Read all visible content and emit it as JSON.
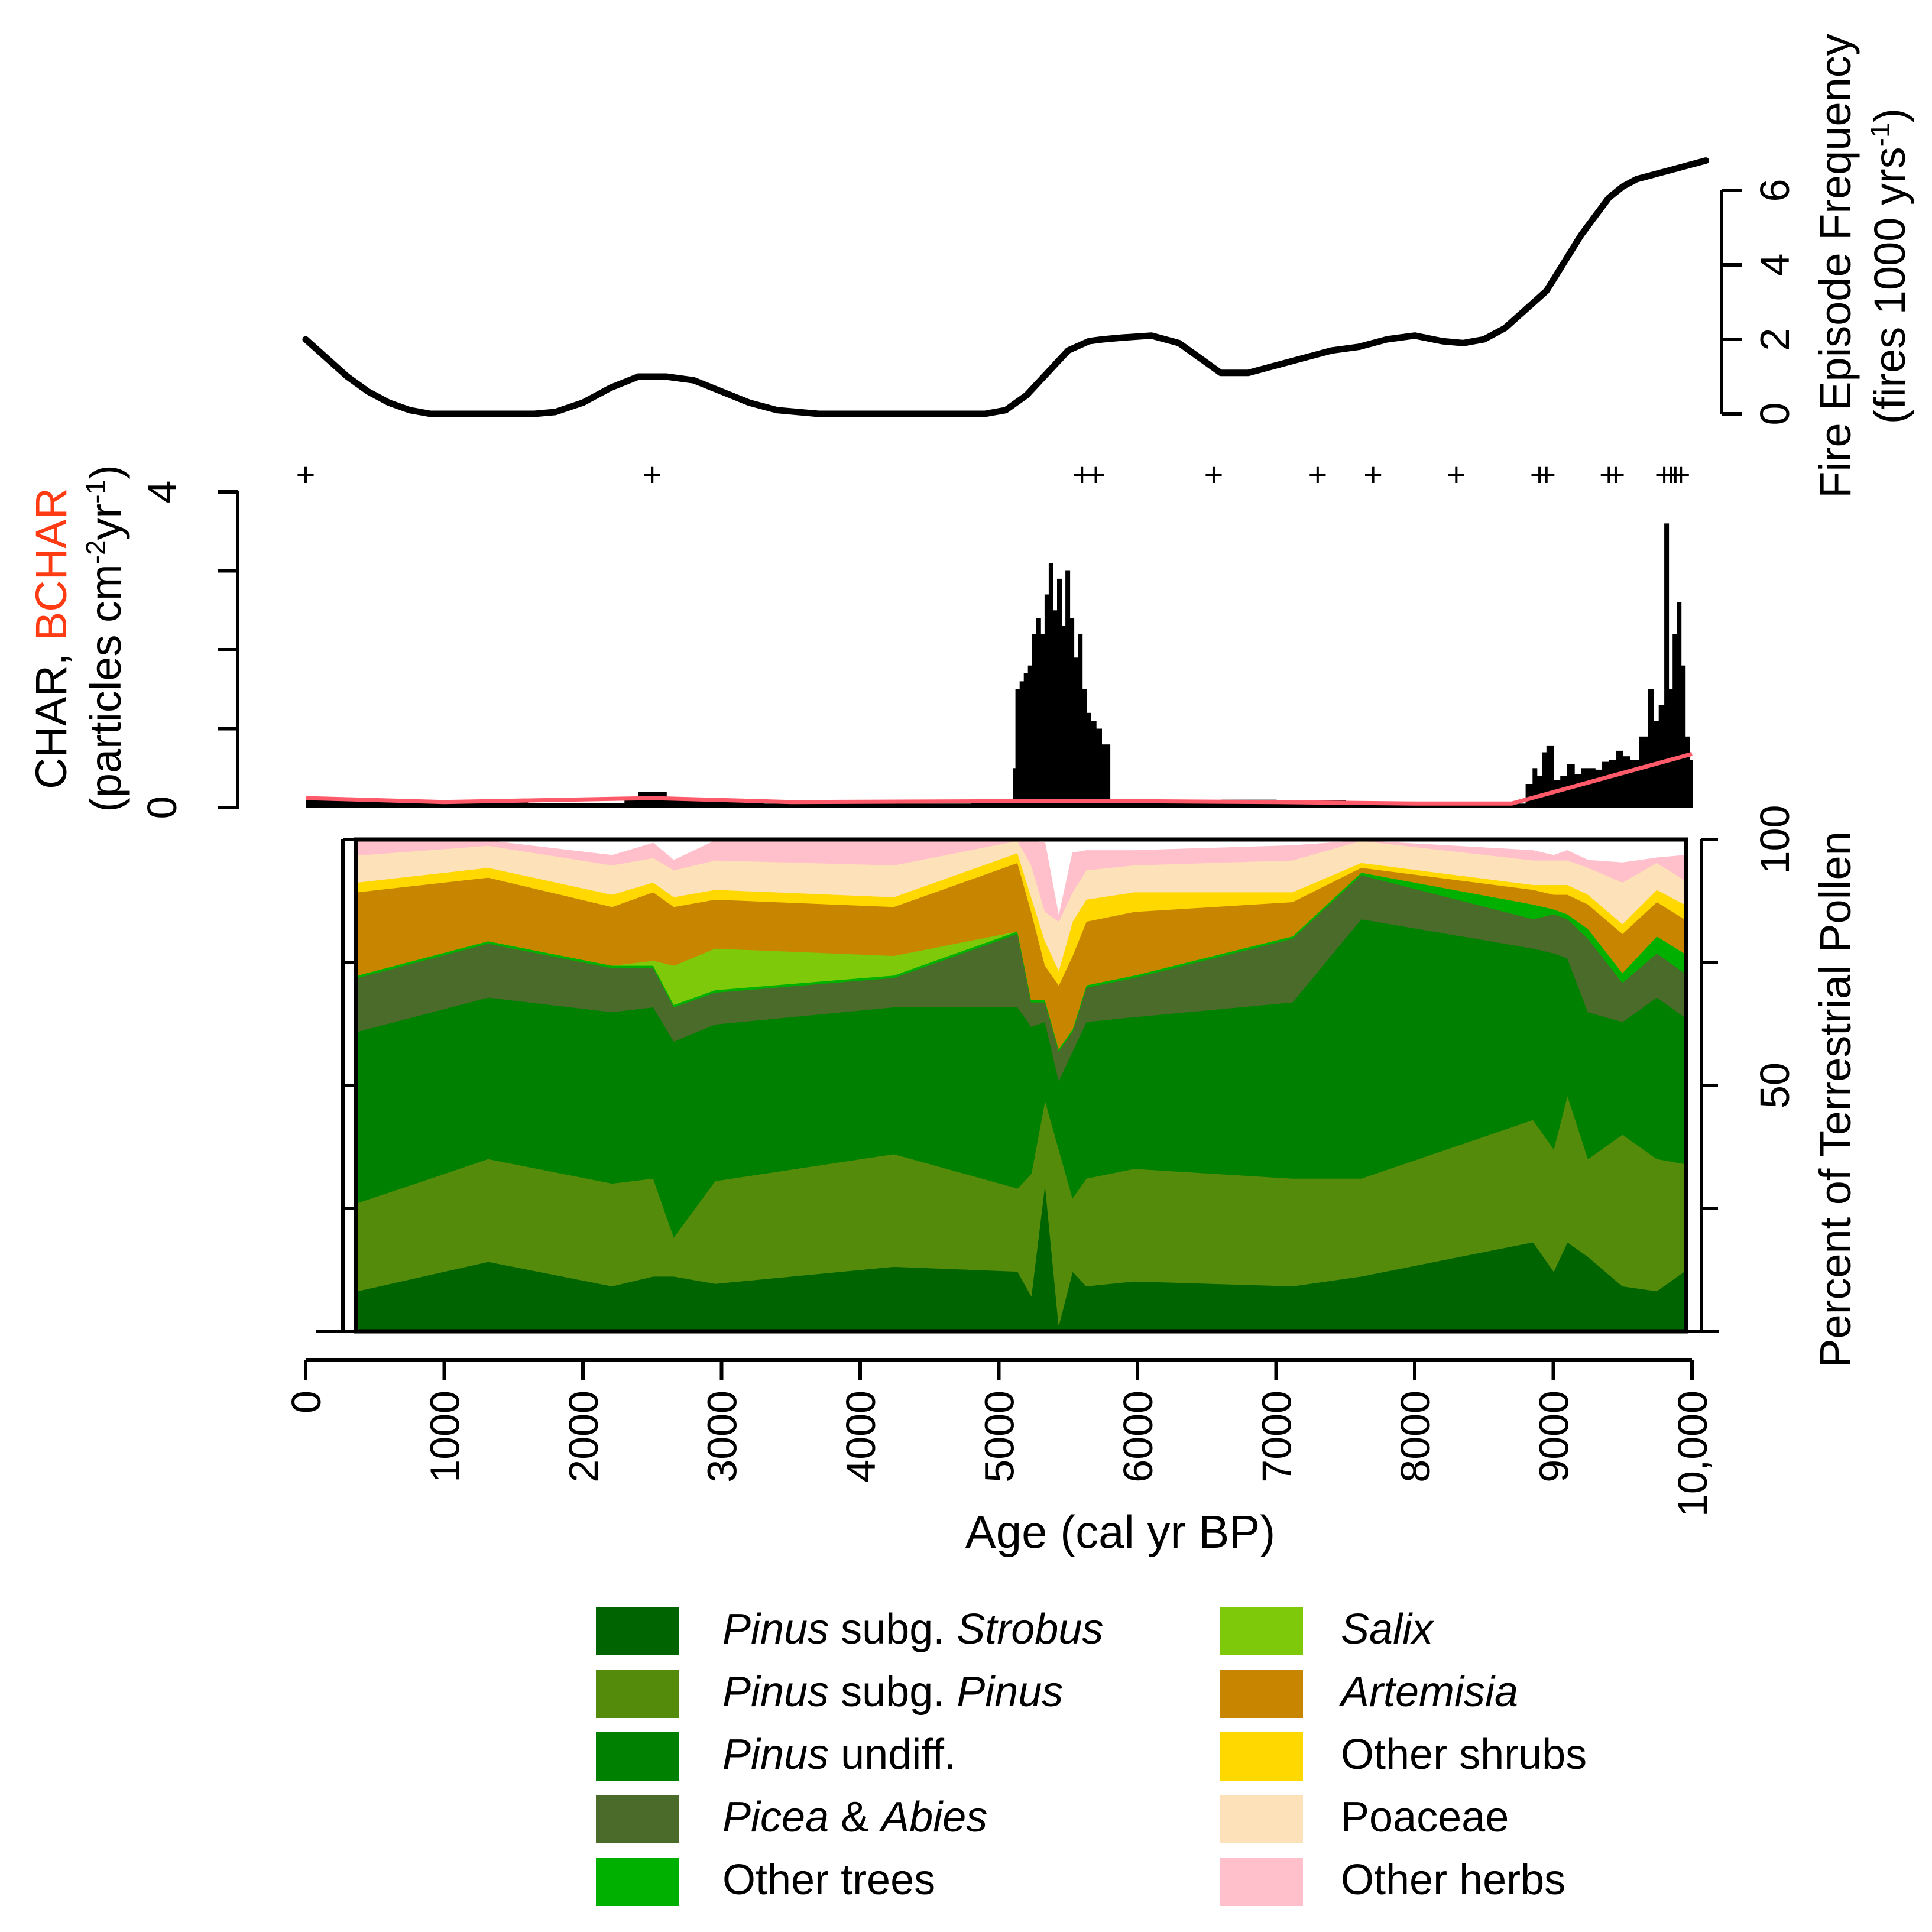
{
  "chart_data": [
    {
      "id": "fire_frequency",
      "type": "line",
      "ylabel_line1": "Fire Episode Frequency",
      "ylabel_line2": "(fires 1000 yrs",
      "ylabel_sup": "-1",
      "ylabel_close": ")",
      "ylim": [
        0,
        6
      ],
      "yticks": [
        "0",
        "2",
        "4",
        "6"
      ],
      "x": [
        0,
        150,
        300,
        450,
        600,
        750,
        900,
        1050,
        1200,
        1500,
        1650,
        1800,
        2000,
        2200,
        2400,
        2600,
        2800,
        3000,
        3200,
        3400,
        3700,
        4000,
        4300,
        4700,
        4900,
        5050,
        5200,
        5350,
        5500,
        5650,
        5750,
        5900,
        6100,
        6300,
        6450,
        6600,
        6800,
        7000,
        7200,
        7400,
        7600,
        7800,
        8000,
        8200,
        8350,
        8500,
        8650,
        8800,
        8950,
        9100,
        9200,
        9300,
        9400,
        9500,
        9600,
        9700,
        9800,
        9900,
        10100
      ],
      "y": [
        2.0,
        1.5,
        1.0,
        0.6,
        0.3,
        0.1,
        0.0,
        0.0,
        0.0,
        0.0,
        0.0,
        0.05,
        0.3,
        0.7,
        1.0,
        1.0,
        0.9,
        0.6,
        0.3,
        0.1,
        0.0,
        0.0,
        0.0,
        0.0,
        0.0,
        0.1,
        0.5,
        1.1,
        1.7,
        1.95,
        2.0,
        2.05,
        2.1,
        1.9,
        1.5,
        1.1,
        1.1,
        1.3,
        1.5,
        1.7,
        1.8,
        2.0,
        2.1,
        1.95,
        1.9,
        2.0,
        2.3,
        2.8,
        3.3,
        4.2,
        4.8,
        5.3,
        5.8,
        6.1,
        6.3,
        6.4,
        6.5,
        6.6,
        6.8
      ],
      "fire_events_label": "+",
      "fire_events": [
        0,
        2500,
        5600,
        5700,
        6550,
        7300,
        7700,
        8300,
        8900,
        8950,
        9400,
        9450,
        9800,
        9850,
        9880,
        9920
      ]
    },
    {
      "id": "charcoal",
      "type": "bar",
      "ylabel_prefix": "CHAR, ",
      "ylabel_red": "BCHAR",
      "ylabel_line2": "(particles cm",
      "ylabel_sup1": "-2",
      "ylabel_mid": "yr",
      "ylabel_sup2": "-1",
      "ylabel_close": ")",
      "ylim": [
        0,
        4
      ],
      "yticks": [
        "0",
        "4"
      ],
      "char_color": "#000000",
      "bchar_color": "#ff5a6a",
      "bchar_label_color": "#ff3b14",
      "char_bars": [
        [
          0,
          0.1
        ],
        [
          300,
          0.1
        ],
        [
          600,
          0.1
        ],
        [
          700,
          0.06
        ],
        [
          1000,
          0.06
        ],
        [
          1300,
          0.07
        ],
        [
          1600,
          0.06
        ],
        [
          2000,
          0.06
        ],
        [
          2300,
          0.1
        ],
        [
          2400,
          0.2
        ],
        [
          2500,
          0.2
        ],
        [
          2600,
          0.12
        ],
        [
          2900,
          0.08
        ],
        [
          3300,
          0.05
        ],
        [
          3800,
          0.05
        ],
        [
          4300,
          0.05
        ],
        [
          4800,
          0.06
        ],
        [
          5100,
          0.5
        ],
        [
          5120,
          1.5
        ],
        [
          5150,
          1.6
        ],
        [
          5180,
          1.7
        ],
        [
          5210,
          1.8
        ],
        [
          5240,
          2.2
        ],
        [
          5270,
          2.4
        ],
        [
          5300,
          2.2
        ],
        [
          5330,
          2.7
        ],
        [
          5360,
          3.1
        ],
        [
          5390,
          2.5
        ],
        [
          5420,
          2.9
        ],
        [
          5450,
          2.3
        ],
        [
          5480,
          3.0
        ],
        [
          5510,
          2.4
        ],
        [
          5540,
          1.9
        ],
        [
          5570,
          2.2
        ],
        [
          5600,
          1.5
        ],
        [
          5630,
          1.2
        ],
        [
          5660,
          1.1
        ],
        [
          5700,
          1.0
        ],
        [
          5740,
          0.8
        ],
        [
          5800,
          0.08
        ],
        [
          6200,
          0.08
        ],
        [
          6600,
          0.1
        ],
        [
          7000,
          0.09
        ],
        [
          7500,
          0.06
        ],
        [
          8000,
          0.05
        ],
        [
          8500,
          0.05
        ],
        [
          8800,
          0.3
        ],
        [
          8850,
          0.5
        ],
        [
          8880,
          0.4
        ],
        [
          8920,
          0.7
        ],
        [
          8950,
          0.78
        ],
        [
          9000,
          0.35
        ],
        [
          9050,
          0.4
        ],
        [
          9100,
          0.55
        ],
        [
          9150,
          0.42
        ],
        [
          9200,
          0.5
        ],
        [
          9300,
          0.48
        ],
        [
          9350,
          0.58
        ],
        [
          9400,
          0.6
        ],
        [
          9450,
          0.72
        ],
        [
          9500,
          0.65
        ],
        [
          9550,
          0.6
        ],
        [
          9620,
          0.9
        ],
        [
          9680,
          1.5
        ],
        [
          9720,
          1.1
        ],
        [
          9760,
          1.3
        ],
        [
          9800,
          3.6
        ],
        [
          9830,
          1.5
        ],
        [
          9860,
          2.2
        ],
        [
          9890,
          2.6
        ],
        [
          9920,
          1.8
        ],
        [
          9950,
          0.9
        ],
        [
          9980,
          0.6
        ]
      ],
      "bchar_x": [
        0,
        1000,
        2500,
        3500,
        5000,
        6000,
        7000,
        8000,
        8700,
        10000
      ],
      "bchar_y": [
        0.12,
        0.07,
        0.12,
        0.07,
        0.08,
        0.08,
        0.07,
        0.05,
        0.05,
        0.68
      ]
    },
    {
      "id": "pollen",
      "type": "area",
      "ylabel": "Percent of Terrestrial Pollen",
      "ylim": [
        0,
        100
      ],
      "yticks": [
        "50",
        "100"
      ],
      "xlabel": "Age (cal yr BP)",
      "xlim": [
        0,
        10000
      ],
      "xticks": [
        "0",
        "1000",
        "2000",
        "3000",
        "4000",
        "5000",
        "6000",
        "7000",
        "8000",
        "9000",
        "10,000"
      ],
      "x": [
        350,
        1300,
        2200,
        2500,
        2650,
        2950,
        4250,
        5150,
        5250,
        5350,
        5450,
        5550,
        5650,
        6000,
        7150,
        7650,
        8900,
        9050,
        9150,
        9300,
        9550,
        9800,
        10000
      ],
      "series": [
        {
          "name": "Pinus subg. Strobus",
          "name_italic_a": "Pinus",
          "name_plain": " subg. ",
          "name_italic_b": "Strobus",
          "color": "#006400",
          "values": [
            8,
            14,
            9,
            11,
            11,
            9.5,
            13,
            12,
            7,
            30,
            1,
            12,
            9,
            10,
            9,
            11,
            18,
            12,
            18,
            15,
            9,
            8,
            12
          ]
        },
        {
          "name": "Pinus subg. Pinus",
          "name_italic_a": "Pinus",
          "name_plain": " subg. ",
          "name_italic_b": "Pinus",
          "color": "#558b0a",
          "values": [
            18,
            21,
            21,
            20,
            8,
            21,
            23,
            17,
            25,
            17,
            36,
            15,
            22,
            23,
            22,
            20,
            25,
            25,
            30,
            20,
            31,
            27,
            22
          ]
        },
        {
          "name": "Pinus undiff.",
          "name_italic_a": "Pinus",
          "name_plain": " undiff.",
          "name_italic_b": "",
          "color": "#008000",
          "values": [
            35,
            33,
            35,
            35,
            40,
            32,
            30,
            37,
            30,
            16,
            14,
            30,
            32,
            31,
            36,
            53,
            35,
            40,
            28,
            30,
            23,
            33,
            30
          ]
        },
        {
          "name": "Picea & Abies",
          "name_italic_a": "Picea",
          "name_plain": " & ",
          "name_italic_b": "Abies",
          "color": "#4a6b2a",
          "values": [
            11,
            11,
            9,
            8,
            7,
            6.5,
            6,
            15,
            5,
            4,
            6,
            4,
            7,
            8,
            13,
            9,
            6,
            8,
            8,
            15,
            8,
            9,
            9
          ]
        },
        {
          "name": "Other trees",
          "name_italic_a": "",
          "name_plain": "Other trees",
          "name_italic_b": "",
          "color": "#00b000",
          "values": [
            0.5,
            0.5,
            0.5,
            0.5,
            0.5,
            0.5,
            0.5,
            0.5,
            0.5,
            0.5,
            0.5,
            0.5,
            0.5,
            0.5,
            0.5,
            0.5,
            3,
            1,
            1,
            2,
            2,
            3.5,
            4
          ]
        },
        {
          "name": "Salix",
          "name_italic_a": "Salix",
          "name_plain": "",
          "name_italic_b": "",
          "color": "#7ec90a",
          "values": [
            0,
            0,
            0,
            1,
            8,
            8.5,
            4,
            0,
            0,
            0,
            0,
            0,
            0,
            0,
            0,
            0,
            0,
            0,
            0,
            0,
            0,
            0,
            0
          ]
        },
        {
          "name": "Artemisia",
          "name_italic_a": "Artemisia",
          "name_plain": "",
          "name_italic_b": "",
          "color": "#c88600",
          "values": [
            17,
            13,
            12,
            14,
            12,
            10,
            10,
            14,
            18,
            7,
            13,
            15,
            13,
            13,
            7,
            1,
            3,
            3,
            4,
            5,
            8,
            7,
            7
          ]
        },
        {
          "name": "Other shrubs",
          "name_italic_a": "",
          "name_plain": "Other shrubs",
          "name_italic_b": "",
          "color": "#ffd800",
          "values": [
            2,
            2,
            2.5,
            2,
            2,
            2,
            2,
            2,
            3,
            5,
            3,
            7,
            4.5,
            4,
            2,
            1,
            1,
            2,
            2,
            2,
            2,
            2.5,
            3
          ]
        },
        {
          "name": "Poaceae",
          "name_italic_a": "",
          "name_plain": "Poaceae",
          "name_italic_b": "",
          "color": "#fde1b8",
          "values": [
            5.5,
            4.5,
            6,
            5,
            5.5,
            6,
            6.5,
            4,
            6.5,
            6,
            10,
            6,
            6,
            5.5,
            6.5,
            5.5,
            5,
            5,
            5,
            5.5,
            8.5,
            5.5,
            5
          ]
        },
        {
          "name": "Other herbs",
          "name_italic_a": "",
          "name_plain": "Other herbs",
          "name_italic_b": "",
          "color": "#ffc0cb",
          "values": [
            3,
            1,
            2,
            3,
            2,
            4,
            5,
            1,
            5.5,
            14,
            1,
            8,
            4,
            3,
            3,
            2.5,
            2,
            1,
            2,
            1.5,
            4,
            1,
            5
          ]
        }
      ]
    }
  ]
}
